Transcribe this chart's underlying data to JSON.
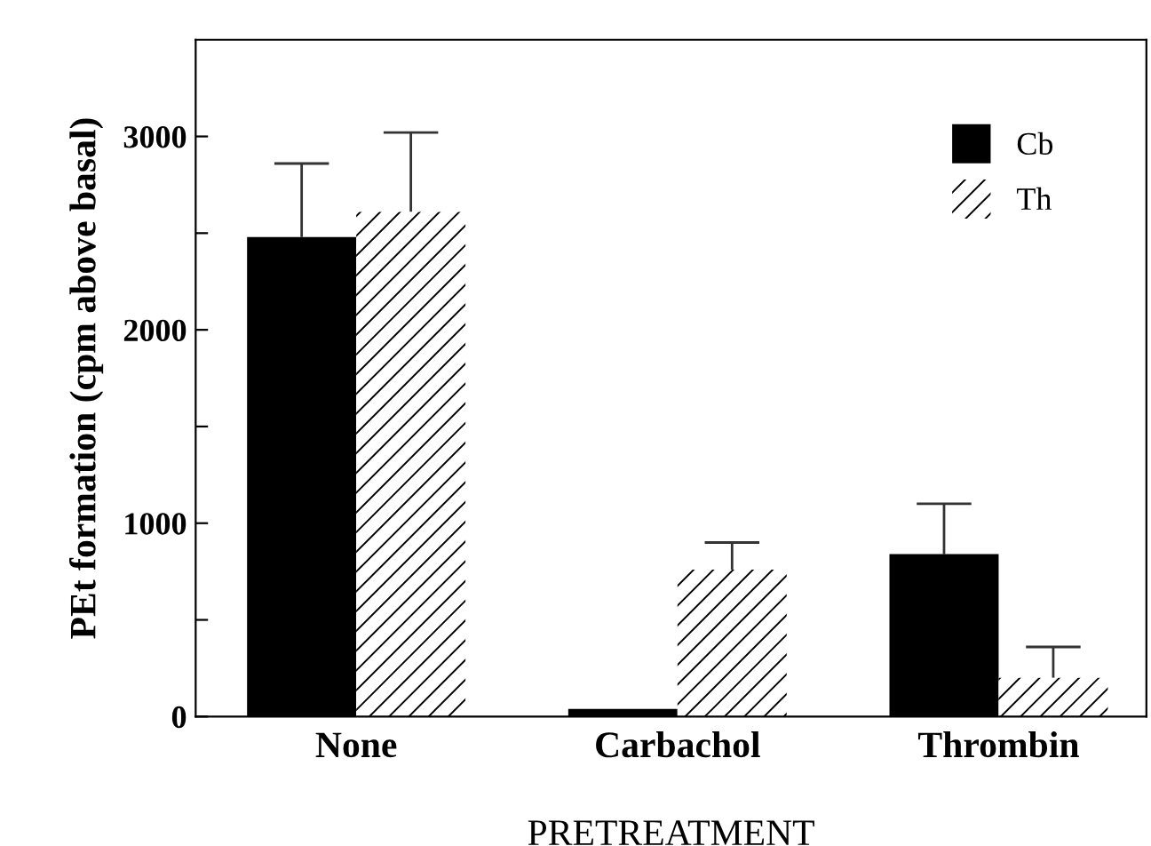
{
  "chart_data": {
    "type": "bar",
    "xlabel": "PRETREATMENT",
    "ylabel": "PEt formation (cpm above basal)",
    "categories": [
      "None",
      "Carbachol",
      "Thrombin"
    ],
    "series": [
      {
        "name": "Cb",
        "color": "#000000",
        "values": [
          2480,
          40,
          840
        ],
        "errors": [
          [
            2480,
            2860
          ],
          null,
          [
            840,
            1100
          ]
        ]
      },
      {
        "name": "Th",
        "color": "#ffffff",
        "values": [
          2610,
          760,
          200
        ],
        "errors": [
          [
            2610,
            3020
          ],
          [
            760,
            900
          ],
          [
            200,
            360
          ]
        ]
      }
    ],
    "ylim": [
      0,
      3500
    ],
    "yticks": [
      0,
      {
        "value": 500,
        "label": null
      },
      1000,
      {
        "value": 1500,
        "label": null
      },
      2000,
      {
        "value": 2500,
        "label": null
      },
      3000
    ],
    "grid": false,
    "legend": "top right"
  }
}
